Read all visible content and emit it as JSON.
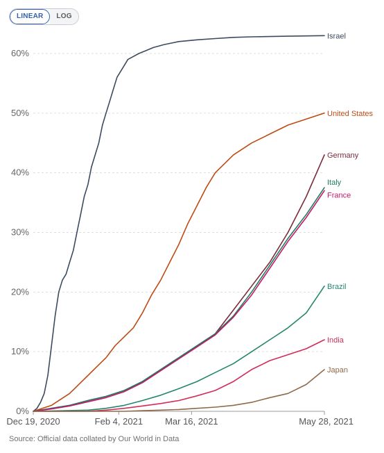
{
  "toggle": {
    "linear_label": "LINEAR",
    "log_label": "LOG",
    "active": "linear"
  },
  "source": "Source: Official data collated by Our World in Data",
  "chart_data": {
    "type": "line",
    "x_ticks": [
      "Dec 19, 2020",
      "Feb 4, 2021",
      "Mar 16, 2021",
      "May 28, 2021"
    ],
    "x_tick_days": [
      0,
      47,
      87,
      160
    ],
    "y_ticks": [
      "0%",
      "10%",
      "20%",
      "30%",
      "40%",
      "50%",
      "60%"
    ],
    "ylim": [
      0,
      62
    ],
    "grid": true,
    "series": [
      {
        "name": "Israel",
        "color": "#3b4a5e",
        "points": [
          [
            0,
            0
          ],
          [
            2,
            0.5
          ],
          [
            4,
            1.5
          ],
          [
            6,
            3
          ],
          [
            8,
            6
          ],
          [
            10,
            11
          ],
          [
            12,
            16
          ],
          [
            14,
            20
          ],
          [
            16,
            22
          ],
          [
            18,
            23
          ],
          [
            20,
            25
          ],
          [
            22,
            27
          ],
          [
            24,
            30
          ],
          [
            26,
            33
          ],
          [
            28,
            36
          ],
          [
            30,
            38
          ],
          [
            32,
            41
          ],
          [
            34,
            43
          ],
          [
            36,
            45
          ],
          [
            38,
            48
          ],
          [
            40,
            50
          ],
          [
            42,
            52
          ],
          [
            44,
            54
          ],
          [
            46,
            56
          ],
          [
            48,
            57
          ],
          [
            50,
            58
          ],
          [
            52,
            59
          ],
          [
            55,
            59.5
          ],
          [
            58,
            60
          ],
          [
            62,
            60.5
          ],
          [
            66,
            61
          ],
          [
            72,
            61.5
          ],
          [
            80,
            62
          ],
          [
            90,
            62.3
          ],
          [
            100,
            62.5
          ],
          [
            110,
            62.7
          ],
          [
            120,
            62.8
          ],
          [
            140,
            62.9
          ],
          [
            160,
            63
          ]
        ]
      },
      {
        "name": "United States",
        "color": "#bd4b13",
        "points": [
          [
            0,
            0
          ],
          [
            5,
            0.5
          ],
          [
            10,
            1
          ],
          [
            15,
            2
          ],
          [
            20,
            3
          ],
          [
            25,
            4.5
          ],
          [
            30,
            6
          ],
          [
            35,
            7.5
          ],
          [
            40,
            9
          ],
          [
            45,
            11
          ],
          [
            50,
            12.5
          ],
          [
            55,
            14
          ],
          [
            60,
            16.5
          ],
          [
            65,
            19.5
          ],
          [
            70,
            22
          ],
          [
            75,
            25
          ],
          [
            80,
            28
          ],
          [
            85,
            31.5
          ],
          [
            90,
            34.5
          ],
          [
            95,
            37.5
          ],
          [
            100,
            40
          ],
          [
            110,
            43
          ],
          [
            120,
            45
          ],
          [
            130,
            46.5
          ],
          [
            140,
            48
          ],
          [
            150,
            49
          ],
          [
            160,
            50
          ]
        ]
      },
      {
        "name": "Germany",
        "color": "#7c2a3a",
        "points": [
          [
            0,
            0
          ],
          [
            10,
            0.5
          ],
          [
            20,
            1
          ],
          [
            30,
            1.8
          ],
          [
            40,
            2.5
          ],
          [
            50,
            3.5
          ],
          [
            60,
            5
          ],
          [
            70,
            7
          ],
          [
            80,
            9
          ],
          [
            90,
            11
          ],
          [
            100,
            13
          ],
          [
            110,
            17
          ],
          [
            120,
            21
          ],
          [
            130,
            25
          ],
          [
            140,
            30
          ],
          [
            150,
            36
          ],
          [
            160,
            43
          ]
        ]
      },
      {
        "name": "Italy",
        "color": "#1b7f5b",
        "points": [
          [
            0,
            0
          ],
          [
            10,
            0.5
          ],
          [
            20,
            1
          ],
          [
            30,
            1.8
          ],
          [
            40,
            2.5
          ],
          [
            50,
            3.5
          ],
          [
            60,
            5
          ],
          [
            70,
            7
          ],
          [
            80,
            9
          ],
          [
            90,
            11
          ],
          [
            100,
            13
          ],
          [
            110,
            16
          ],
          [
            120,
            20
          ],
          [
            130,
            24.5
          ],
          [
            140,
            29
          ],
          [
            150,
            33
          ],
          [
            160,
            37.5
          ]
        ]
      },
      {
        "name": "France",
        "color": "#c5176e",
        "points": [
          [
            0,
            0
          ],
          [
            10,
            0.4
          ],
          [
            20,
            0.9
          ],
          [
            30,
            1.6
          ],
          [
            40,
            2.3
          ],
          [
            50,
            3.3
          ],
          [
            60,
            4.8
          ],
          [
            70,
            6.8
          ],
          [
            80,
            8.8
          ],
          [
            90,
            10.8
          ],
          [
            100,
            12.8
          ],
          [
            110,
            15.8
          ],
          [
            120,
            19.5
          ],
          [
            130,
            24
          ],
          [
            140,
            28.5
          ],
          [
            150,
            32.5
          ],
          [
            160,
            37
          ]
        ]
      },
      {
        "name": "Brazil",
        "color": "#22876d",
        "points": [
          [
            0,
            0
          ],
          [
            30,
            0.2
          ],
          [
            40,
            0.5
          ],
          [
            50,
            1
          ],
          [
            60,
            1.8
          ],
          [
            70,
            2.7
          ],
          [
            80,
            3.8
          ],
          [
            90,
            5
          ],
          [
            100,
            6.5
          ],
          [
            110,
            8
          ],
          [
            120,
            10
          ],
          [
            130,
            12
          ],
          [
            140,
            14
          ],
          [
            150,
            16.5
          ],
          [
            160,
            21
          ]
        ]
      },
      {
        "name": "India",
        "color": "#d32c58",
        "points": [
          [
            0,
            0
          ],
          [
            30,
            0
          ],
          [
            40,
            0.2
          ],
          [
            50,
            0.5
          ],
          [
            60,
            0.9
          ],
          [
            70,
            1.3
          ],
          [
            80,
            1.8
          ],
          [
            90,
            2.6
          ],
          [
            100,
            3.5
          ],
          [
            110,
            5
          ],
          [
            120,
            7
          ],
          [
            130,
            8.5
          ],
          [
            140,
            9.5
          ],
          [
            150,
            10.5
          ],
          [
            160,
            12
          ]
        ]
      },
      {
        "name": "Japan",
        "color": "#8f6a48",
        "points": [
          [
            0,
            0
          ],
          [
            50,
            0
          ],
          [
            60,
            0.1
          ],
          [
            70,
            0.2
          ],
          [
            80,
            0.3
          ],
          [
            90,
            0.5
          ],
          [
            100,
            0.7
          ],
          [
            110,
            1
          ],
          [
            120,
            1.5
          ],
          [
            130,
            2.3
          ],
          [
            140,
            3
          ],
          [
            150,
            4.5
          ],
          [
            160,
            7
          ]
        ]
      }
    ]
  }
}
